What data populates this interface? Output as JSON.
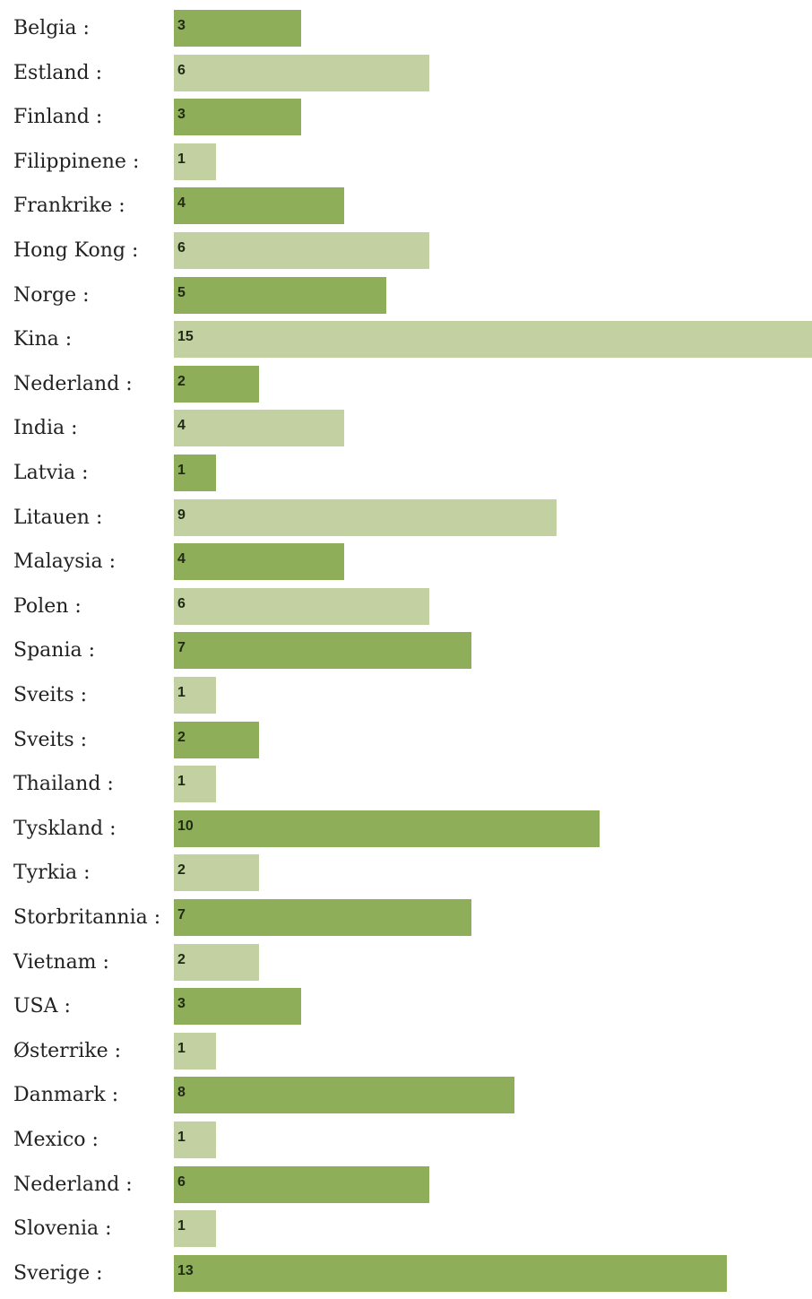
{
  "colors": {
    "dark": "#8fae5a",
    "light": "#c2d0a2"
  },
  "chart_data": {
    "type": "bar",
    "orientation": "horizontal",
    "xlim": [
      0,
      15
    ],
    "categories": [
      "Belgia :",
      "Estland :",
      "Finland :",
      "Filippinene :",
      "Frankrike :",
      "Hong Kong :",
      "Norge :",
      "Kina :",
      "Nederland :",
      "India :",
      "Latvia :",
      "Litauen :",
      "Malaysia :",
      "Polen :",
      "Spania :",
      "Sveits :",
      "Sveits :",
      "Thailand :",
      "Tyskland :",
      "Tyrkia :",
      "Storbritannia :",
      "Vietnam :",
      "USA :",
      "Østerrike :",
      "Danmark :",
      "Mexico :",
      "Nederland :",
      "Slovenia :",
      "Sverige :"
    ],
    "values": [
      3,
      6,
      3,
      1,
      4,
      6,
      5,
      15,
      2,
      4,
      1,
      9,
      4,
      6,
      7,
      1,
      2,
      1,
      10,
      2,
      7,
      2,
      3,
      1,
      8,
      1,
      6,
      1,
      13
    ],
    "value_labels": [
      "3",
      "6",
      "3",
      "1",
      "4",
      "6",
      "5",
      "15",
      "2",
      "4",
      "1",
      "9",
      "4",
      "6",
      "7",
      "1",
      "2",
      "1",
      "10",
      "2",
      "7",
      "2",
      "3",
      "1",
      "8",
      "1",
      "6",
      "1",
      "13"
    ],
    "bar_colors": [
      "#8fae5a",
      "#c2d0a2",
      "#8fae5a",
      "#c2d0a2",
      "#8fae5a",
      "#c2d0a2",
      "#8fae5a",
      "#c2d0a2",
      "#8fae5a",
      "#c2d0a2",
      "#8fae5a",
      "#c2d0a2",
      "#8fae5a",
      "#c2d0a2",
      "#8fae5a",
      "#c2d0a2",
      "#8fae5a",
      "#c2d0a2",
      "#8fae5a",
      "#c2d0a2",
      "#8fae5a",
      "#c2d0a2",
      "#8fae5a",
      "#c2d0a2",
      "#8fae5a",
      "#c2d0a2",
      "#8fae5a",
      "#c2d0a2",
      "#8fae5a"
    ],
    "title": "",
    "xlabel": "",
    "ylabel": "",
    "grid": false,
    "legend": "none"
  }
}
